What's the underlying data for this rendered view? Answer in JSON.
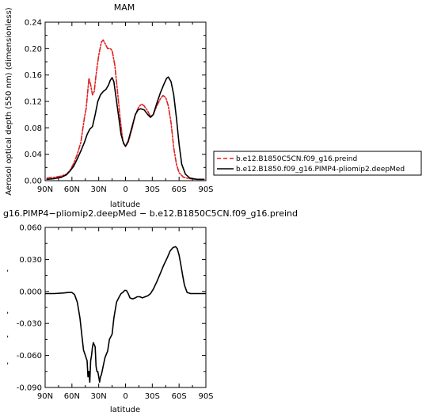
{
  "chart_data": [
    {
      "type": "line",
      "title": "MAM",
      "xlabel": "latitude",
      "ylabel": "Aerosol optical depth (550 nm) (dimensionless)",
      "xlim": [
        90,
        -90
      ],
      "ylim": [
        0,
        0.24
      ],
      "x_ticks": [
        90,
        60,
        30,
        0,
        -30,
        -60,
        -90
      ],
      "x_tick_labels": [
        "90N",
        "60N",
        "30N",
        "0",
        "30S",
        "60S",
        "90S"
      ],
      "y_ticks": [
        0,
        0.04,
        0.08,
        0.12,
        0.16,
        0.2,
        0.24
      ],
      "y_tick_labels": [
        "0.00",
        "0.04",
        "0.08",
        "0.12",
        "0.16",
        "0.20",
        "0.24"
      ],
      "legend_placement": "right",
      "series": [
        {
          "name": "b.e12.B1850C5CN.f09_g16.preind",
          "color": "#e0201e",
          "style": "dashed",
          "points": [
            [
              88,
              0.004
            ],
            [
              80,
              0.005
            ],
            [
              72,
              0.007
            ],
            [
              66,
              0.01
            ],
            [
              62,
              0.016
            ],
            [
              58,
              0.026
            ],
            [
              54,
              0.04
            ],
            [
              50,
              0.058
            ],
            [
              46,
              0.095
            ],
            [
              44,
              0.11
            ],
            [
              41,
              0.155
            ],
            [
              39,
              0.145
            ],
            [
              37,
              0.13
            ],
            [
              35,
              0.135
            ],
            [
              33,
              0.16
            ],
            [
              30,
              0.19
            ],
            [
              27,
              0.21
            ],
            [
              25,
              0.213
            ],
            [
              23,
              0.208
            ],
            [
              20,
              0.2
            ],
            [
              17,
              0.2
            ],
            [
              15,
              0.197
            ],
            [
              12,
              0.175
            ],
            [
              9,
              0.135
            ],
            [
              6,
              0.095
            ],
            [
              3,
              0.06
            ],
            [
              0,
              0.052
            ],
            [
              -3,
              0.058
            ],
            [
              -7,
              0.077
            ],
            [
              -11,
              0.1
            ],
            [
              -15,
              0.112
            ],
            [
              -18,
              0.116
            ],
            [
              -21,
              0.113
            ],
            [
              -25,
              0.105
            ],
            [
              -28,
              0.097
            ],
            [
              -31,
              0.1
            ],
            [
              -35,
              0.113
            ],
            [
              -39,
              0.124
            ],
            [
              -42,
              0.129
            ],
            [
              -45,
              0.126
            ],
            [
              -48,
              0.113
            ],
            [
              -51,
              0.088
            ],
            [
              -54,
              0.05
            ],
            [
              -57,
              0.025
            ],
            [
              -60,
              0.012
            ],
            [
              -65,
              0.005
            ],
            [
              -72,
              0.003
            ],
            [
              -80,
              0.002
            ],
            [
              -88,
              0.002
            ]
          ]
        },
        {
          "name": "b.e12.B1850.f09_g16.PIMP4-pliomip2.deepMed",
          "color": "#000000",
          "style": "solid",
          "points": [
            [
              88,
              0.002
            ],
            [
              80,
              0.003
            ],
            [
              72,
              0.005
            ],
            [
              66,
              0.009
            ],
            [
              62,
              0.015
            ],
            [
              58,
              0.022
            ],
            [
              54,
              0.033
            ],
            [
              50,
              0.045
            ],
            [
              46,
              0.058
            ],
            [
              43,
              0.07
            ],
            [
              40,
              0.078
            ],
            [
              37,
              0.082
            ],
            [
              34,
              0.1
            ],
            [
              31,
              0.12
            ],
            [
              28,
              0.13
            ],
            [
              25,
              0.135
            ],
            [
              22,
              0.138
            ],
            [
              19,
              0.145
            ],
            [
              17,
              0.152
            ],
            [
              15,
              0.156
            ],
            [
              13,
              0.15
            ],
            [
              11,
              0.13
            ],
            [
              8,
              0.1
            ],
            [
              5,
              0.07
            ],
            [
              2,
              0.056
            ],
            [
              0,
              0.052
            ],
            [
              -3,
              0.06
            ],
            [
              -7,
              0.08
            ],
            [
              -11,
              0.1
            ],
            [
              -14,
              0.107
            ],
            [
              -17,
              0.109
            ],
            [
              -21,
              0.107
            ],
            [
              -25,
              0.1
            ],
            [
              -28,
              0.096
            ],
            [
              -31,
              0.1
            ],
            [
              -35,
              0.117
            ],
            [
              -39,
              0.133
            ],
            [
              -43,
              0.146
            ],
            [
              -46,
              0.155
            ],
            [
              -48,
              0.157
            ],
            [
              -51,
              0.15
            ],
            [
              -54,
              0.13
            ],
            [
              -57,
              0.095
            ],
            [
              -60,
              0.055
            ],
            [
              -63,
              0.025
            ],
            [
              -67,
              0.01
            ],
            [
              -72,
              0.004
            ],
            [
              -80,
              0.002
            ],
            [
              -88,
              0.002
            ]
          ]
        }
      ]
    },
    {
      "type": "line",
      "title": "g16.PIMP4−pliomip2.deepMed − b.e12.B1850C5CN.f09_g16.preind",
      "xlabel": "latitude",
      "ylabel": "",
      "xlim": [
        90,
        -90
      ],
      "ylim": [
        -0.09,
        0.06
      ],
      "x_ticks": [
        90,
        60,
        30,
        0,
        -30,
        -60,
        -90
      ],
      "x_tick_labels": [
        "90N",
        "60N",
        "30N",
        "0",
        "30S",
        "60S",
        "90S"
      ],
      "y_ticks": [
        0.06,
        0.03,
        0,
        -0.03,
        -0.06,
        -0.09
      ],
      "y_tick_labels": [
        "0.060",
        "0.030",
        "0.000",
        "-0.030",
        "-0.060",
        "-0.090"
      ],
      "series": [
        {
          "color": "#000000",
          "style": "solid",
          "points": [
            [
              90,
              -0.002
            ],
            [
              80,
              -0.002
            ],
            [
              70,
              -0.0015
            ],
            [
              64,
              -0.001
            ],
            [
              60,
              -0.001
            ],
            [
              57,
              -0.003
            ],
            [
              54,
              -0.01
            ],
            [
              51,
              -0.025
            ],
            [
              49,
              -0.04
            ],
            [
              47,
              -0.055
            ],
            [
              45,
              -0.06
            ],
            [
              43,
              -0.065
            ],
            [
              42,
              -0.08
            ],
            [
              41,
              -0.075
            ],
            [
              40,
              -0.085
            ],
            [
              39,
              -0.065
            ],
            [
              38,
              -0.06
            ],
            [
              37,
              -0.052
            ],
            [
              36,
              -0.048
            ],
            [
              35,
              -0.05
            ],
            [
              34,
              -0.052
            ],
            [
              33,
              -0.07
            ],
            [
              32,
              -0.075
            ],
            [
              31,
              -0.075
            ],
            [
              30,
              -0.08
            ],
            [
              29,
              -0.085
            ],
            [
              28,
              -0.08
            ],
            [
              27,
              -0.078
            ],
            [
              25,
              -0.07
            ],
            [
              23,
              -0.062
            ],
            [
              20,
              -0.056
            ],
            [
              18,
              -0.045
            ],
            [
              15,
              -0.04
            ],
            [
              13,
              -0.025
            ],
            [
              10,
              -0.01
            ],
            [
              7,
              -0.005
            ],
            [
              5,
              -0.002
            ],
            [
              3,
              -0.001
            ],
            [
              1,
              0.001
            ],
            [
              -1,
              0.001
            ],
            [
              -3,
              -0.002
            ],
            [
              -5,
              -0.006
            ],
            [
              -8,
              -0.007
            ],
            [
              -11,
              -0.006
            ],
            [
              -13,
              -0.005
            ],
            [
              -16,
              -0.005
            ],
            [
              -19,
              -0.006
            ],
            [
              -22,
              -0.005
            ],
            [
              -25,
              -0.004
            ],
            [
              -28,
              -0.002
            ],
            [
              -31,
              0.002
            ],
            [
              -35,
              0.009
            ],
            [
              -39,
              0.017
            ],
            [
              -43,
              0.025
            ],
            [
              -47,
              0.032
            ],
            [
              -50,
              0.038
            ],
            [
              -53,
              0.041
            ],
            [
              -56,
              0.042
            ],
            [
              -58,
              0.04
            ],
            [
              -60,
              0.034
            ],
            [
              -62,
              0.025
            ],
            [
              -64,
              0.015
            ],
            [
              -66,
              0.006
            ],
            [
              -69,
              -0.001
            ],
            [
              -73,
              -0.002
            ],
            [
              -80,
              -0.002
            ],
            [
              -90,
              -0.002
            ]
          ]
        }
      ]
    }
  ]
}
